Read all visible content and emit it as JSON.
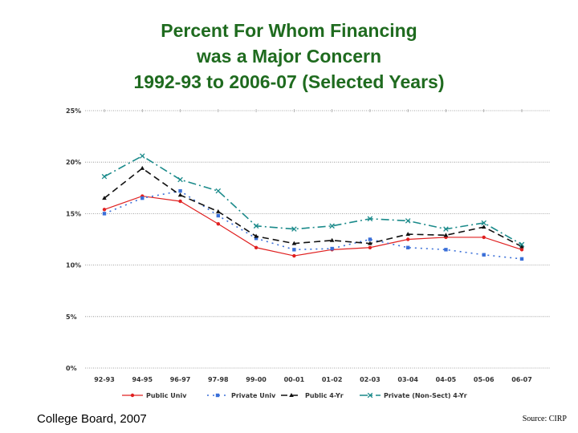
{
  "title_lines": [
    "Percent For Whom Financing",
    "was a Major Concern",
    "1992-93 to 2006-07 (Selected Years)"
  ],
  "footer": {
    "left": "College Board, 2007",
    "right": "Source: CIRP"
  },
  "colors": {
    "title": "#1f6b1f",
    "public_univ": "#e02020",
    "private_univ": "#3a6fd8",
    "public_4yr": "#111111",
    "private_nonsect_4yr": "#1a8a8a",
    "grid": "#888888"
  },
  "chart_data": {
    "type": "line",
    "title": "Percent For Whom Financing was a Major Concern 1992-93 to 2006-07 (Selected Years)",
    "xlabel": "",
    "ylabel": "",
    "categories": [
      "92-93",
      "94-95",
      "96-97",
      "97-98",
      "99-00",
      "00-01",
      "01-02",
      "02-03",
      "03-04",
      "04-05",
      "05-06",
      "06-07"
    ],
    "ylim": [
      0,
      25
    ],
    "yticks": [
      {
        "value": 0,
        "label": "0%"
      },
      {
        "value": 5,
        "label": "5%"
      },
      {
        "value": 10,
        "label": "10%"
      },
      {
        "value": 15,
        "label": "15%"
      },
      {
        "value": 20,
        "label": "20%"
      },
      {
        "value": 25,
        "label": "25%"
      }
    ],
    "grid": true,
    "legend_position": "bottom",
    "series": [
      {
        "name": "Public Univ",
        "color": "#e02020",
        "dash": "",
        "marker": "circle",
        "values": [
          15.4,
          16.7,
          16.2,
          14.0,
          11.7,
          10.9,
          11.5,
          11.7,
          12.5,
          12.7,
          12.7,
          11.5
        ]
      },
      {
        "name": "Private Univ",
        "color": "#3a6fd8",
        "dash": "2,5",
        "marker": "square",
        "values": [
          15.0,
          16.5,
          17.2,
          14.8,
          12.6,
          11.5,
          11.6,
          12.5,
          11.7,
          11.5,
          11.0,
          10.6
        ]
      },
      {
        "name": "Public 4-Yr",
        "color": "#111111",
        "dash": "8,5",
        "marker": "triangle",
        "values": [
          16.5,
          19.4,
          16.8,
          15.2,
          12.8,
          12.1,
          12.4,
          12.1,
          13.0,
          12.9,
          13.7,
          11.8
        ]
      },
      {
        "name": "Private (Non-Sect) 4-Yr",
        "color": "#1a8a8a",
        "dash": "10,4,2,4",
        "marker": "x",
        "values": [
          18.6,
          20.6,
          18.3,
          17.2,
          13.8,
          13.5,
          13.8,
          14.5,
          14.3,
          13.5,
          14.1,
          12.0
        ]
      }
    ]
  }
}
